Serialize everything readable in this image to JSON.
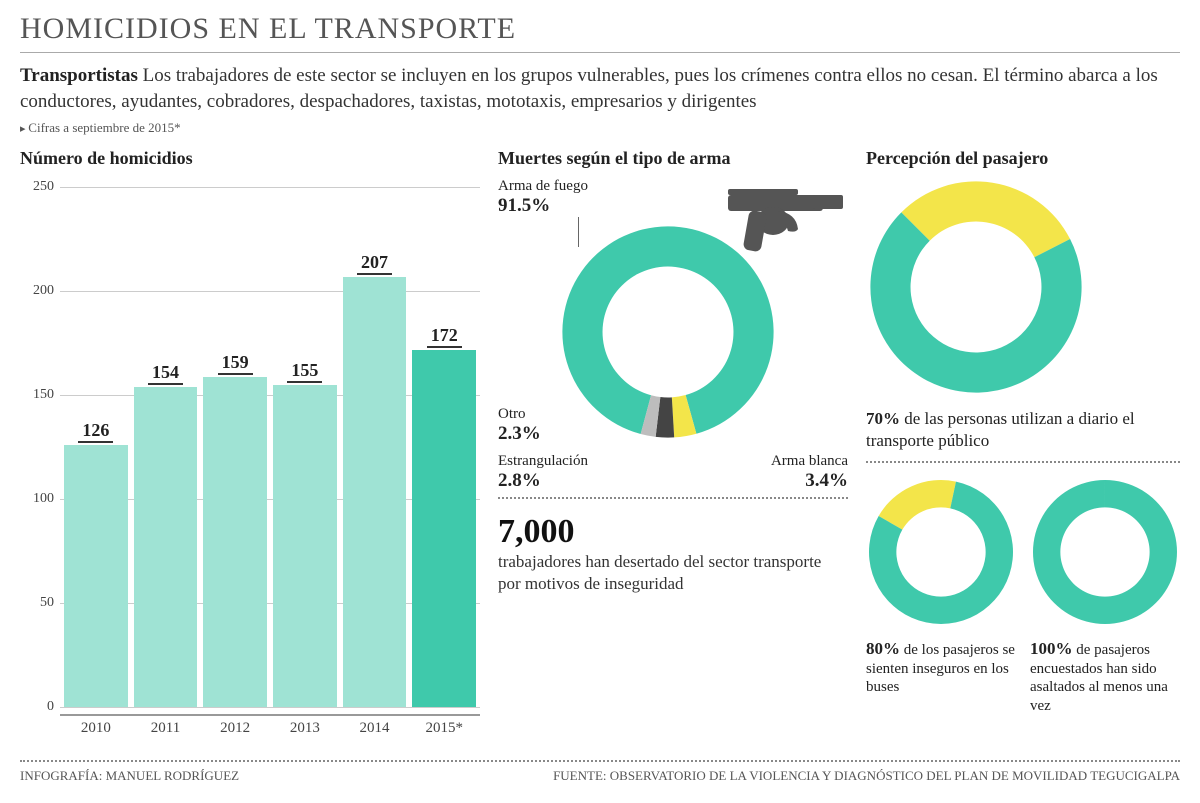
{
  "title": "HOMICIDIOS EN EL TRANSPORTE",
  "lead_bold": "Transportistas",
  "lead_text": " Los trabajadores de este sector se incluyen en los grupos vulnerables, pues los crímenes contra ellos no cesan. El término abarca a los conductores, ayudantes, cobradores, despachadores, taxistas, mototaxis, empresarios y dirigentes",
  "note": "Cifras a septiembre de 2015*",
  "bar_chart": {
    "type": "bar",
    "title": "Número de homicidios",
    "categories": [
      "2010",
      "2011",
      "2012",
      "2013",
      "2014",
      "2015*"
    ],
    "values": [
      126,
      154,
      159,
      155,
      207,
      172
    ],
    "bar_colors": [
      "#9fe3d4",
      "#9fe3d4",
      "#9fe3d4",
      "#9fe3d4",
      "#9fe3d4",
      "#3fc9ab"
    ],
    "ylim": [
      0,
      250
    ],
    "ytick_step": 50,
    "grid_color": "#cccccc",
    "axis_color": "#999999",
    "label_fontsize": 15,
    "value_fontsize": 18
  },
  "weapon_donut": {
    "type": "donut",
    "title": "Muertes según el tipo de arma",
    "slices": [
      {
        "label": "Arma de fuego",
        "value": 91.5,
        "value_text": "91.5%",
        "color": "#3fc9ab"
      },
      {
        "label": "Arma blanca",
        "value": 3.4,
        "value_text": "3.4%",
        "color": "#f3e54a"
      },
      {
        "label": "Estrangulación",
        "value": 2.8,
        "value_text": "2.8%",
        "color": "#444444"
      },
      {
        "label": "Otro",
        "value": 2.3,
        "value_text": "2.3%",
        "color": "#bdbdbd"
      }
    ],
    "inner_ratio": 0.62,
    "icon": "gun-icon"
  },
  "workers_stat": {
    "number": "7,000",
    "text": "trabajadores han desertado del sector transporte por motivos de inseguridad"
  },
  "passenger": {
    "title": "Percepción del pasajero",
    "daily_use": {
      "type": "donut",
      "value": 70,
      "segments": [
        {
          "color": "#3fc9ab",
          "value": 70
        },
        {
          "color": "#f3e54a",
          "value": 30
        }
      ],
      "inner_ratio": 0.62,
      "text_bold": "70%",
      "text": " de las personas utilizan a diario el transporte público"
    },
    "insecure": {
      "type": "donut",
      "value": 80,
      "segments": [
        {
          "color": "#3fc9ab",
          "value": 80
        },
        {
          "color": "#f3e54a",
          "value": 20
        }
      ],
      "inner_ratio": 0.62,
      "text_bold": "80%",
      "text": " de los pasajeros se sienten inseguros en los buses"
    },
    "assaulted": {
      "type": "donut",
      "value": 100,
      "segments": [
        {
          "color": "#3fc9ab",
          "value": 100
        }
      ],
      "inner_ratio": 0.62,
      "text_bold": "100%",
      "text": " de pasajeros encuestados han sido asaltados al menos una vez"
    }
  },
  "footer": {
    "credit": "INFOGRAFÍA: MANUEL RODRÍGUEZ",
    "source": "FUENTE: OBSERVATORIO DE LA VIOLENCIA Y DIAGNÓSTICO DEL PLAN DE MOVILIDAD TEGUCIGALPA"
  },
  "colors": {
    "teal": "#3fc9ab",
    "teal_light": "#9fe3d4",
    "yellow": "#f3e54a",
    "dark": "#444444",
    "grey": "#bdbdbd",
    "text": "#222222",
    "bg": "#ffffff"
  }
}
